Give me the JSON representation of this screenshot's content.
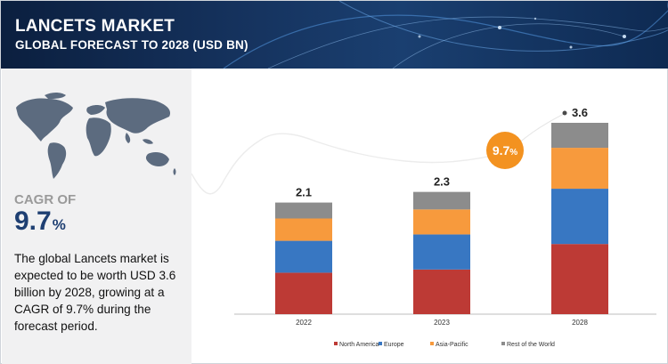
{
  "header": {
    "title": "LANCETS MARKET",
    "subtitle": "GLOBAL FORECAST TO 2028 (USD BN)"
  },
  "summary": {
    "cagr_label": "CAGR OF",
    "cagr_value": "9.7",
    "cagr_unit": "%",
    "description": "The global Lancets market is expected to be worth USD 3.6 billion by 2028, growing at a CAGR of 9.7% during the forecast period."
  },
  "growth_badge": {
    "value": "9.7",
    "unit": "%",
    "color": "#f39220"
  },
  "colors": {
    "header_bg": "#15325d",
    "left_panel_bg": "#f1f1f2",
    "cagr_value": "#1e3f72"
  },
  "chart_data": {
    "type": "bar",
    "stacked": true,
    "categories": [
      "2022",
      "2023",
      "2028"
    ],
    "totals": [
      "2.1",
      "2.3",
      "3.6"
    ],
    "series": [
      {
        "name": "North America",
        "color": "#bd3a35",
        "values": [
          0.78,
          0.84,
          1.32
        ]
      },
      {
        "name": "Europe",
        "color": "#3877c2",
        "values": [
          0.6,
          0.66,
          1.04
        ]
      },
      {
        "name": "Asia-Pacific",
        "color": "#f79a3d",
        "values": [
          0.42,
          0.47,
          0.77
        ]
      },
      {
        "name": "Rest of the World",
        "color": "#8c8c8c",
        "values": [
          0.3,
          0.33,
          0.47
        ]
      }
    ],
    "ylim": [
      0,
      3.6
    ],
    "legend_position": "bottom",
    "grid": false
  }
}
